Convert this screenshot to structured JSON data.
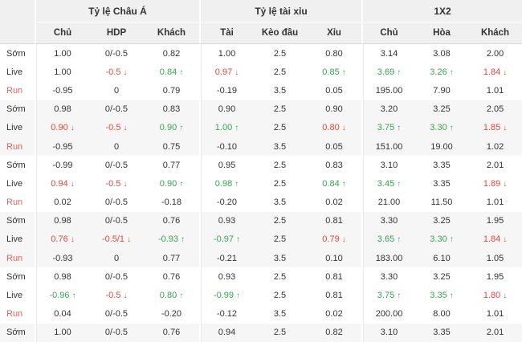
{
  "colors": {
    "up_green": "#36a452",
    "down_red": "#e8453a",
    "run_label_red": "#e2625d",
    "header_bg": "#f0f0f0",
    "shade_bg": "#f6f6f6",
    "text": "#333333"
  },
  "icons": {
    "up": "↑",
    "down": "↓"
  },
  "table": {
    "groups": [
      {
        "label": "Tỷ lệ Châu Á"
      },
      {
        "label": "Tỷ lệ tài xỉu"
      },
      {
        "label": "1X2"
      }
    ],
    "sub_headers": [
      "Chủ",
      "HDP",
      "Khách",
      "Tài",
      "Kèo đầu",
      "Xỉu",
      "Chủ",
      "Hòa",
      "Khách"
    ],
    "rows": [
      {
        "label": "Sớm",
        "kind": "som",
        "shade": false,
        "cells": [
          "1.00",
          "0/-0.5",
          "0.82",
          "1.00",
          "2.5",
          "0.80",
          "3.14",
          "3.08",
          "2.00"
        ]
      },
      {
        "label": "Live",
        "kind": "live",
        "shade": false,
        "cells": [
          "1.00",
          {
            "v": "-0.5",
            "t": "down"
          },
          {
            "v": "0.84",
            "t": "up"
          },
          {
            "v": "0.97",
            "t": "down"
          },
          "2.5",
          {
            "v": "0.85",
            "t": "up"
          },
          {
            "v": "3.69",
            "t": "up"
          },
          {
            "v": "3.26",
            "t": "up"
          },
          {
            "v": "1.84",
            "t": "down"
          }
        ]
      },
      {
        "label": "Run",
        "kind": "run",
        "shade": false,
        "cells": [
          "-0.95",
          "0",
          "0.79",
          "-0.19",
          "3.5",
          "0.05",
          "195.00",
          "7.90",
          "1.01"
        ]
      },
      {
        "label": "Sớm",
        "kind": "som",
        "shade": true,
        "cells": [
          "0.98",
          "0/-0.5",
          "0.83",
          "0.90",
          "2.5",
          "0.90",
          "3.20",
          "3.25",
          "2.05"
        ]
      },
      {
        "label": "Live",
        "kind": "live",
        "shade": true,
        "cells": [
          {
            "v": "0.90",
            "t": "down"
          },
          {
            "v": "-0.5",
            "t": "down"
          },
          {
            "v": "0.90",
            "t": "up"
          },
          {
            "v": "1.00",
            "t": "up"
          },
          "2.5",
          {
            "v": "0.80",
            "t": "down"
          },
          {
            "v": "3.75",
            "t": "up"
          },
          {
            "v": "3.30",
            "t": "up"
          },
          {
            "v": "1.85",
            "t": "down"
          }
        ]
      },
      {
        "label": "Run",
        "kind": "run",
        "shade": true,
        "cells": [
          "-0.95",
          "0",
          "0.75",
          "-0.10",
          "3.5",
          "0.05",
          "151.00",
          "19.00",
          "1.02"
        ]
      },
      {
        "label": "Sớm",
        "kind": "som",
        "shade": false,
        "cells": [
          "-0.99",
          "0/-0.5",
          "0.77",
          "0.95",
          "2.5",
          "0.83",
          "3.10",
          "3.35",
          "2.01"
        ]
      },
      {
        "label": "Live",
        "kind": "live",
        "shade": false,
        "cells": [
          {
            "v": "0.94",
            "t": "down"
          },
          {
            "v": "-0.5",
            "t": "down"
          },
          {
            "v": "0.90",
            "t": "up"
          },
          {
            "v": "0.98",
            "t": "up"
          },
          "2.5",
          {
            "v": "0.84",
            "t": "up"
          },
          {
            "v": "3.45",
            "t": "up"
          },
          "3.35",
          {
            "v": "1.89",
            "t": "down"
          }
        ]
      },
      {
        "label": "Run",
        "kind": "run",
        "shade": false,
        "cells": [
          "0.02",
          "0/-0.5",
          "-0.18",
          "-0.20",
          "3.5",
          "0.02",
          "21.00",
          "11.50",
          "1.01"
        ]
      },
      {
        "label": "Sớm",
        "kind": "som",
        "shade": true,
        "cells": [
          "0.98",
          "0/-0.5",
          "0.76",
          "0.93",
          "2.5",
          "0.81",
          "3.30",
          "3.25",
          "1.95"
        ]
      },
      {
        "label": "Live",
        "kind": "live",
        "shade": true,
        "cells": [
          {
            "v": "0.76",
            "t": "down"
          },
          {
            "v": "-0.5/1",
            "t": "down"
          },
          {
            "v": "-0.93",
            "t": "up"
          },
          {
            "v": "-0.97",
            "t": "up"
          },
          "2.5",
          {
            "v": "0.79",
            "t": "down"
          },
          {
            "v": "3.65",
            "t": "up"
          },
          {
            "v": "3.30",
            "t": "up"
          },
          {
            "v": "1.84",
            "t": "down"
          }
        ]
      },
      {
        "label": "Run",
        "kind": "run",
        "shade": true,
        "cells": [
          "-0.93",
          "0",
          "0.77",
          "-0.21",
          "3.5",
          "0.10",
          "183.00",
          "6.10",
          "1.05"
        ]
      },
      {
        "label": "Sớm",
        "kind": "som",
        "shade": false,
        "cells": [
          "0.98",
          "0/-0.5",
          "0.76",
          "0.93",
          "2.5",
          "0.81",
          "3.30",
          "3.25",
          "1.95"
        ]
      },
      {
        "label": "Live",
        "kind": "live",
        "shade": false,
        "cells": [
          {
            "v": "-0.96",
            "t": "up"
          },
          {
            "v": "-0.5",
            "t": "down"
          },
          {
            "v": "0.80",
            "t": "up"
          },
          {
            "v": "-0.99",
            "t": "up"
          },
          "2.5",
          "0.81",
          {
            "v": "3.75",
            "t": "up"
          },
          {
            "v": "3.35",
            "t": "up"
          },
          {
            "v": "1.80",
            "t": "down"
          }
        ]
      },
      {
        "label": "Run",
        "kind": "run",
        "shade": false,
        "cells": [
          "0.04",
          "0/-0.5",
          "-0.20",
          "-0.12",
          "3.5",
          "0.02",
          "200.00",
          "8.00",
          "1.01"
        ]
      },
      {
        "label": "Sớm",
        "kind": "som",
        "shade": true,
        "cells": [
          "1.00",
          "0/-0.5",
          "0.76",
          "0.94",
          "2.5",
          "0.82",
          "3.10",
          "3.35",
          "2.01"
        ]
      }
    ]
  }
}
